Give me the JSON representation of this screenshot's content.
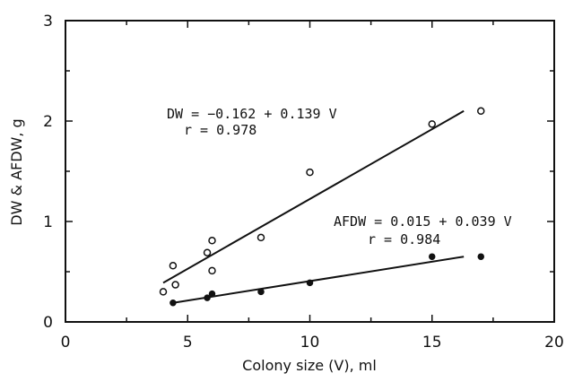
{
  "chart_data": {
    "type": "scatter",
    "title": "",
    "xlabel": "Colony size (V), ml",
    "ylabel": "DW & AFDW, g",
    "xlim": [
      0,
      20
    ],
    "ylim": [
      0,
      3
    ],
    "xticks": [
      "0",
      "5",
      "10",
      "15",
      "20"
    ],
    "yticks": [
      "0",
      "1",
      "2",
      "3"
    ],
    "grid": false,
    "series": [
      {
        "marker": "open-circle",
        "x": [
          4.0,
          4.4,
          4.5,
          5.8,
          6.0,
          6.0,
          8.0,
          10.0,
          15.0,
          17.0
        ],
        "y": [
          0.3,
          0.56,
          0.37,
          0.69,
          0.81,
          0.51,
          0.84,
          1.49,
          1.97,
          2.1
        ],
        "fit": {
          "x": [
            4.0,
            16.3
          ],
          "y": [
            0.39,
            2.1
          ]
        },
        "equation": "DW = −0.162 + 0.139 V",
        "r_label": "r = 0.978"
      },
      {
        "marker": "filled-circle",
        "x": [
          4.4,
          5.8,
          6.0,
          8.0,
          10.0,
          15.0,
          17.0
        ],
        "y": [
          0.19,
          0.24,
          0.28,
          0.3,
          0.39,
          0.65,
          0.65
        ],
        "fit": {
          "x": [
            4.4,
            16.3
          ],
          "y": [
            0.19,
            0.65
          ]
        },
        "equation": "AFDW = 0.015 + 0.039 V",
        "r_label": "r = 0.984"
      }
    ]
  }
}
